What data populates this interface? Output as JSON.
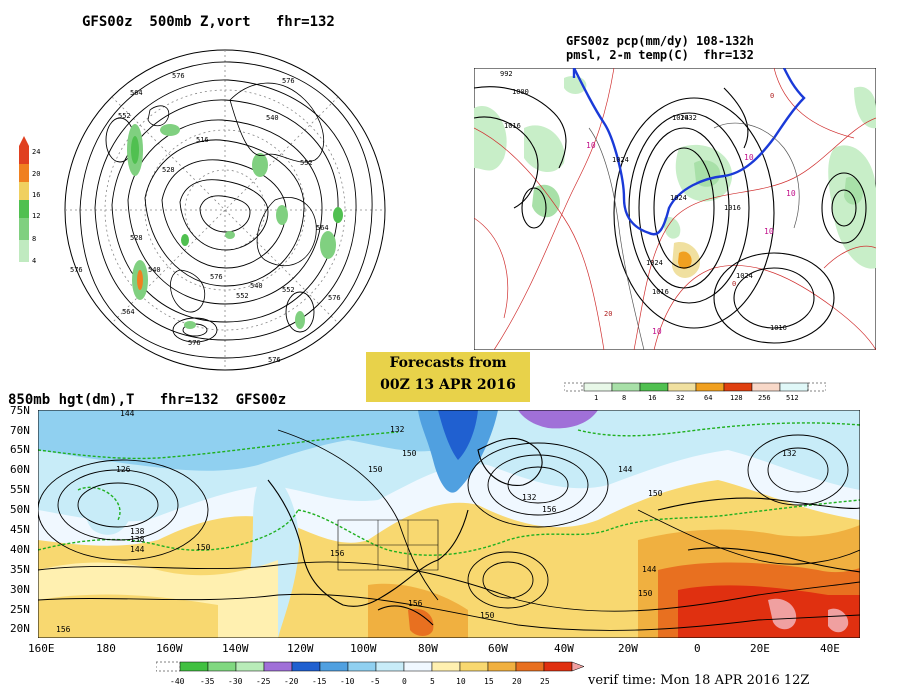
{
  "panel_500mb": {
    "title": "GFS00z  500mb Z,vort   fhr=132",
    "legend_ticks": [
      "24",
      "20",
      "16",
      "12",
      "8",
      "4"
    ],
    "legend_colors": [
      "#e04020",
      "#f08020",
      "#f0d060",
      "#50c050",
      "#80d080",
      "#c0eac0"
    ],
    "contour_labels": [
      "576",
      "576",
      "564",
      "552",
      "516",
      "528",
      "540",
      "552",
      "564",
      "576",
      "576",
      "540",
      "552",
      "552",
      "540",
      "528",
      "564",
      "576",
      "576",
      "576"
    ]
  },
  "panel_pmsl": {
    "title_line1": "GFS00z pcp(mm/dy) 108-132h",
    "title_line2": "pmsl, 2-m temp(C)  fhr=132",
    "labels": [
      "992",
      "1000",
      "1016",
      "1024",
      "1024",
      "1032",
      "1024",
      "1016",
      "1024",
      "1024",
      "1016",
      "1016",
      "10",
      "10",
      "10",
      "10",
      "10",
      "20",
      "0",
      "0"
    ],
    "legend_values": [
      "1",
      "8",
      "16",
      "32",
      "64",
      "128",
      "256",
      "512"
    ],
    "legend_colors": [
      "#e8f8e8",
      "#a8e0a8",
      "#50c050",
      "#f0e0a0",
      "#f0a020",
      "#e04010",
      "#f8d8c8",
      "#e0f8f8"
    ]
  },
  "banner": {
    "line1": "Forecasts from",
    "line2": "00Z 13 APR 2016"
  },
  "panel_850mb": {
    "title": "850mb hgt(dm),T   fhr=132  GFS00z",
    "lat_labels": [
      "75N",
      "70N",
      "65N",
      "60N",
      "55N",
      "50N",
      "45N",
      "40N",
      "35N",
      "30N",
      "25N",
      "20N"
    ],
    "lon_labels": [
      "160E",
      "180",
      "160W",
      "140W",
      "120W",
      "100W",
      "80W",
      "60W",
      "40W",
      "20W",
      "0",
      "20E",
      "40E"
    ],
    "contour_labels": [
      "144",
      "126",
      "132",
      "138",
      "144",
      "150",
      "156",
      "150",
      "132",
      "144",
      "138",
      "150",
      "156",
      "150",
      "144",
      "150",
      "132",
      "156",
      "156",
      "150"
    ],
    "legend_values": [
      "-40",
      "-35",
      "-30",
      "-25",
      "-20",
      "-15",
      "-10",
      "-5",
      "0",
      "5",
      "10",
      "15",
      "20",
      "25"
    ],
    "legend_colors": [
      "#40c040",
      "#80d880",
      "#b8ecb8",
      "#a070d8",
      "#2060d0",
      "#50a0e0",
      "#90d0f0",
      "#c8ecf8",
      "#f0f8ff",
      "#fff0b0",
      "#f8d870",
      "#f0b040",
      "#e87020",
      "#e03010",
      "#f0a0a0"
    ],
    "verif_time": "verif time: Mon 18 APR 2016 12Z"
  }
}
